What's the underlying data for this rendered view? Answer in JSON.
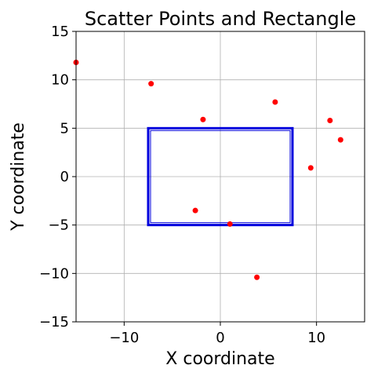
{
  "chart_data": {
    "type": "scatter",
    "title": "Scatter Points and Rectangle",
    "xlabel": "X coordinate",
    "ylabel": "Y coordinate",
    "xlim": [
      -15,
      15
    ],
    "ylim": [
      -15,
      15
    ],
    "xticks": [
      -10,
      0,
      10
    ],
    "xtick_labels": [
      "−10",
      "0",
      "10"
    ],
    "yticks": [
      -15,
      -10,
      -5,
      0,
      5,
      10,
      15
    ],
    "ytick_labels": [
      "−15",
      "−10",
      "−5",
      "0",
      "5",
      "10",
      "15"
    ],
    "grid": true,
    "points": [
      {
        "x": -15.0,
        "y": 11.8
      },
      {
        "x": -7.2,
        "y": 9.6
      },
      {
        "x": -1.8,
        "y": 5.9
      },
      {
        "x": 5.7,
        "y": 7.7
      },
      {
        "x": 11.4,
        "y": 5.8
      },
      {
        "x": 12.5,
        "y": 3.8
      },
      {
        "x": 9.4,
        "y": 0.9
      },
      {
        "x": -2.6,
        "y": -3.5
      },
      {
        "x": 1.0,
        "y": -4.9
      },
      {
        "x": 3.8,
        "y": -10.4
      }
    ],
    "point_color": "#ff0000",
    "rectangle": {
      "x0": -7.5,
      "y0": -5.0,
      "x1": 7.5,
      "y1": 5.0
    },
    "rectangle_color": "#0000dd"
  }
}
